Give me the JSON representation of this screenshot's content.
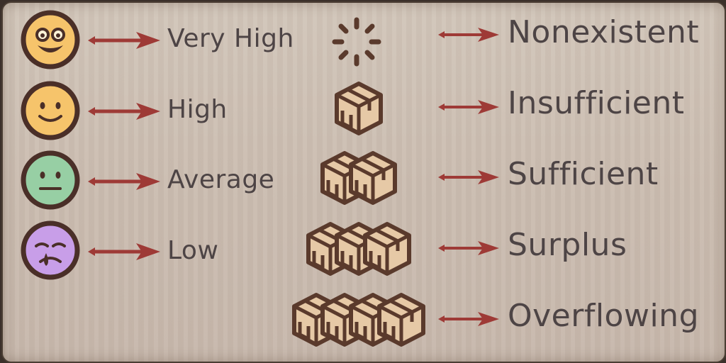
{
  "colors": {
    "text": "#4d4445",
    "arrow": "#9e3a36",
    "face_outline": "#4a2f28",
    "box_fill": "#e6c9a6",
    "box_outline": "#5a3a2c"
  },
  "mood_legend": [
    {
      "label": "Very High",
      "icon": "laughing-face-icon",
      "color": "#f6c46b"
    },
    {
      "label": "High",
      "icon": "smiling-face-icon",
      "color": "#f6c46b"
    },
    {
      "label": "Average",
      "icon": "neutral-face-icon",
      "color": "#97cfa4"
    },
    {
      "label": "Low",
      "icon": "crying-face-icon",
      "color": "#c89ee8"
    }
  ],
  "supply_legend": [
    {
      "label": "Nonexistent",
      "icon": "empty-loading-icon",
      "boxes": 0
    },
    {
      "label": "Insufficient",
      "icon": "box-icon",
      "boxes": 1
    },
    {
      "label": "Sufficient",
      "icon": "boxes-icon",
      "boxes": 2
    },
    {
      "label": "Surplus",
      "icon": "boxes-icon",
      "boxes": 3
    },
    {
      "label": "Overflowing",
      "icon": "boxes-icon",
      "boxes": 4
    }
  ]
}
